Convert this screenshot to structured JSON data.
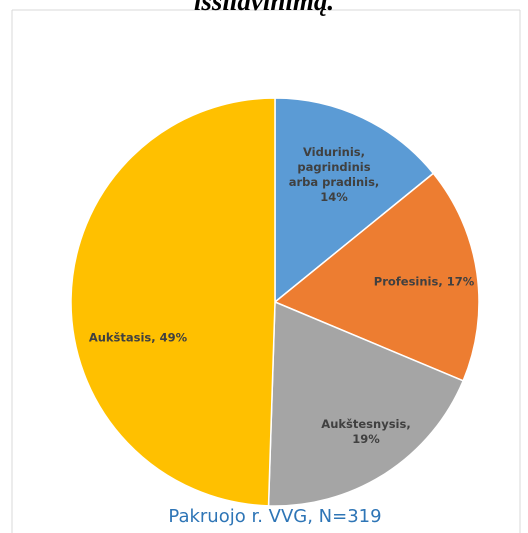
{
  "chart_data": {
    "type": "pie",
    "title": "išsilavinimą.",
    "categories": [
      "Vidurinis, pagrindinis arba pradinis",
      "Profesinis",
      "Aukštesnysis",
      "Aukštasis"
    ],
    "values": [
      14,
      17,
      19,
      49
    ],
    "value_labels": [
      "Vidurinis, pagrindinis arba pradinis, 14%",
      "Profesinis, 17%",
      "Aukštesnysis, 19%",
      "Aukštasis, 49%"
    ],
    "colors": [
      "#5b9bd5",
      "#ed7d31",
      "#a5a5a5",
      "#ffc000"
    ],
    "subtitle": "Pakruojo r. VVG, N=319"
  }
}
